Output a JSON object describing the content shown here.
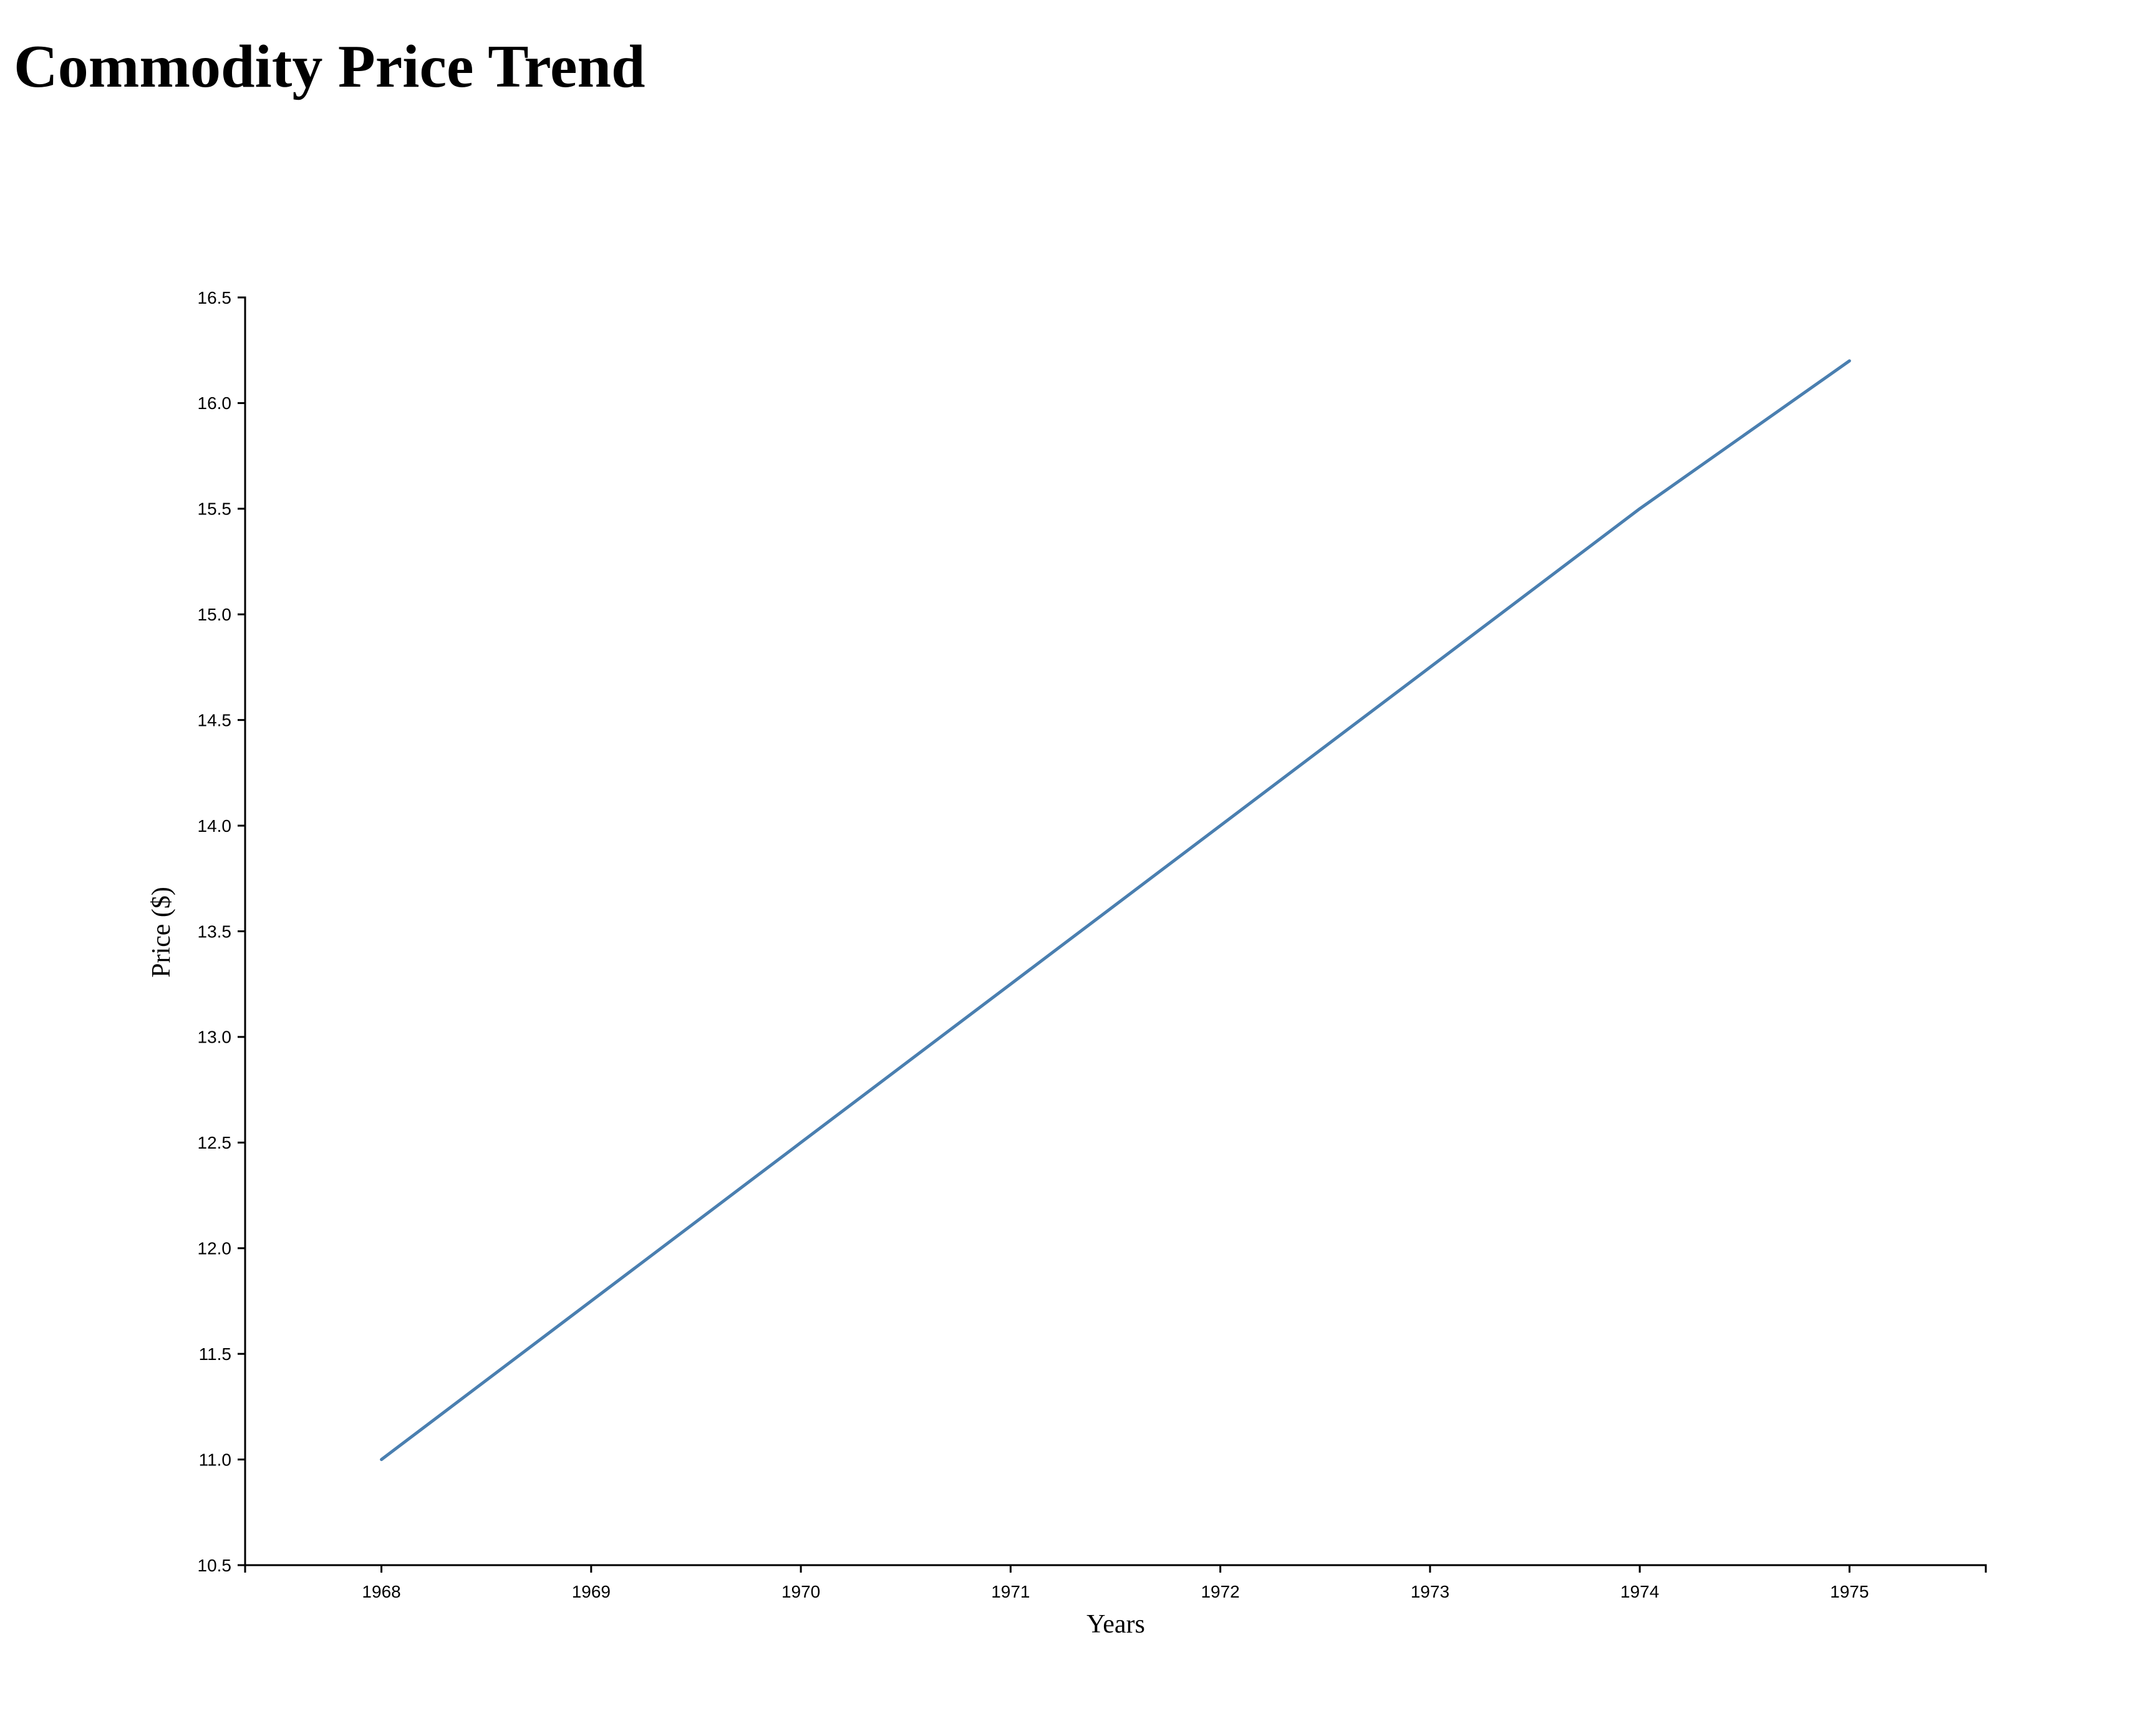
{
  "page": {
    "title": "Commodity Price Trend"
  },
  "colors": {
    "line": "#4a7fb0",
    "axis": "#000000"
  },
  "chart_data": {
    "type": "line",
    "title": "Commodity Price Trend",
    "xlabel": "Years",
    "ylabel": "Price ($)",
    "x": [
      1968,
      1969,
      1970,
      1971,
      1972,
      1973,
      1974,
      1975
    ],
    "series": [
      {
        "values": [
          11.0,
          11.75,
          12.5,
          13.25,
          14.0,
          14.75,
          15.5,
          16.2
        ]
      }
    ],
    "xlim": [
      1967.35,
      1975.65
    ],
    "ylim": [
      10.5,
      16.5
    ],
    "x_ticks": [
      "1968",
      "1969",
      "1970",
      "1971",
      "1972",
      "1973",
      "1974",
      "1975"
    ],
    "y_ticks": [
      "10.5",
      "11.0",
      "11.5",
      "12.0",
      "12.5",
      "13.0",
      "13.5",
      "14.0",
      "14.5",
      "15.0",
      "15.5",
      "16.0",
      "16.5"
    ],
    "grid": false,
    "legend": "none"
  }
}
